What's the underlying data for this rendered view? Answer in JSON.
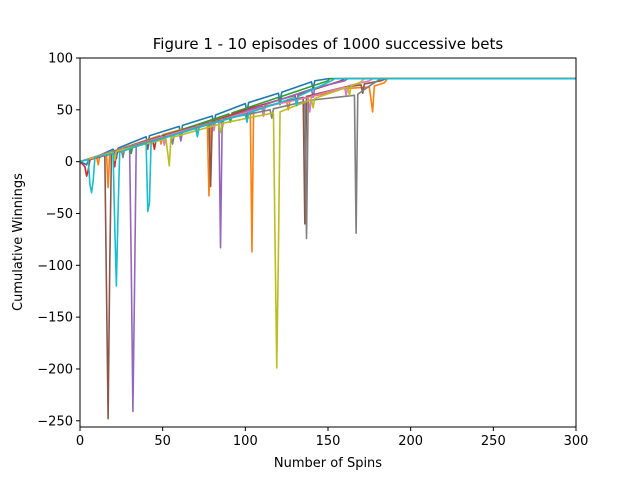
{
  "chart_data": {
    "type": "line",
    "title": "Figure 1 - 10 episodes of 1000 successive bets",
    "xlabel": "Number of Spins",
    "ylabel": "Cumulative Winnings",
    "xlim": [
      0,
      300
    ],
    "ylim": [
      -256,
      100
    ],
    "x_ticks": [
      0,
      50,
      100,
      150,
      200,
      250,
      300
    ],
    "y_ticks": [
      -250,
      -200,
      -150,
      -100,
      -50,
      0,
      50,
      100
    ],
    "x_tick_labels": [
      "0",
      "50",
      "100",
      "150",
      "200",
      "250",
      "300"
    ],
    "y_tick_labels": [
      "−250",
      "−200",
      "−150",
      "−100",
      "−50",
      "0",
      "50",
      "100"
    ],
    "grid": false,
    "legend": "none",
    "plateau_value": 80,
    "series": [
      {
        "color": "#1f77b4",
        "points": [
          [
            0,
            0
          ],
          [
            4,
            -3
          ],
          [
            5,
            1
          ],
          [
            20,
            12
          ],
          [
            22,
            3
          ],
          [
            23,
            13
          ],
          [
            40,
            24
          ],
          [
            41,
            15
          ],
          [
            42,
            25
          ],
          [
            60,
            34
          ],
          [
            61,
            25
          ],
          [
            62,
            35
          ],
          [
            80,
            44
          ],
          [
            81,
            35
          ],
          [
            82,
            45
          ],
          [
            100,
            56
          ],
          [
            101,
            48
          ],
          [
            102,
            57
          ],
          [
            120,
            66
          ],
          [
            121,
            58
          ],
          [
            122,
            67
          ],
          [
            140,
            77
          ],
          [
            141,
            70
          ],
          [
            142,
            78
          ],
          [
            150,
            80
          ],
          [
            300,
            80
          ]
        ]
      },
      {
        "color": "#ff7f0e",
        "points": [
          [
            0,
            0
          ],
          [
            10,
            5
          ],
          [
            11,
            -3
          ],
          [
            12,
            6
          ],
          [
            16,
            8
          ],
          [
            17,
            -25
          ],
          [
            18,
            9
          ],
          [
            48,
            25
          ],
          [
            49,
            17
          ],
          [
            50,
            26
          ],
          [
            77,
            38
          ],
          [
            78,
            -33
          ],
          [
            79,
            39
          ],
          [
            103,
            50
          ],
          [
            104,
            -87
          ],
          [
            105,
            51
          ],
          [
            125,
            58
          ],
          [
            126,
            50
          ],
          [
            127,
            59
          ],
          [
            150,
            66
          ],
          [
            155,
            70
          ],
          [
            175,
            72
          ],
          [
            177,
            48
          ],
          [
            178,
            73
          ],
          [
            184,
            76
          ],
          [
            186,
            80
          ],
          [
            300,
            80
          ]
        ]
      },
      {
        "color": "#2ca02c",
        "points": [
          [
            0,
            0
          ],
          [
            30,
            15
          ],
          [
            31,
            8
          ],
          [
            32,
            16
          ],
          [
            60,
            30
          ],
          [
            61,
            22
          ],
          [
            62,
            31
          ],
          [
            90,
            46
          ],
          [
            91,
            38
          ],
          [
            92,
            47
          ],
          [
            120,
            62
          ],
          [
            121,
            55
          ],
          [
            122,
            63
          ],
          [
            150,
            78
          ],
          [
            151,
            80
          ],
          [
            300,
            80
          ]
        ]
      },
      {
        "color": "#d62728",
        "points": [
          [
            0,
            0
          ],
          [
            3,
            -5
          ],
          [
            4,
            -14
          ],
          [
            5,
            -8
          ],
          [
            6,
            2
          ],
          [
            20,
            8
          ],
          [
            21,
            -5
          ],
          [
            22,
            9
          ],
          [
            44,
            20
          ],
          [
            45,
            12
          ],
          [
            46,
            21
          ],
          [
            70,
            33
          ],
          [
            71,
            25
          ],
          [
            72,
            34
          ],
          [
            100,
            50
          ],
          [
            101,
            42
          ],
          [
            102,
            51
          ],
          [
            130,
            64
          ],
          [
            131,
            57
          ],
          [
            132,
            65
          ],
          [
            158,
            78
          ],
          [
            160,
            80
          ],
          [
            300,
            80
          ]
        ]
      },
      {
        "color": "#9467bd",
        "points": [
          [
            0,
            0
          ],
          [
            15,
            7
          ],
          [
            30,
            14
          ],
          [
            31,
            -100
          ],
          [
            32,
            -241
          ],
          [
            33,
            -120
          ],
          [
            34,
            15
          ],
          [
            60,
            28
          ],
          [
            61,
            20
          ],
          [
            62,
            29
          ],
          [
            84,
            40
          ],
          [
            85,
            -83
          ],
          [
            86,
            41
          ],
          [
            110,
            54
          ],
          [
            111,
            45
          ],
          [
            112,
            55
          ],
          [
            140,
            70
          ],
          [
            141,
            62
          ],
          [
            142,
            71
          ],
          [
            160,
            78
          ],
          [
            162,
            80
          ],
          [
            300,
            80
          ]
        ]
      },
      {
        "color": "#8c564b",
        "points": [
          [
            0,
            0
          ],
          [
            10,
            5
          ],
          [
            15,
            8
          ],
          [
            16,
            -120
          ],
          [
            17,
            -248
          ],
          [
            18,
            -100
          ],
          [
            19,
            9
          ],
          [
            40,
            20
          ],
          [
            41,
            12
          ],
          [
            42,
            21
          ],
          [
            70,
            34
          ],
          [
            71,
            26
          ],
          [
            72,
            35
          ],
          [
            78,
            38
          ],
          [
            79,
            -24
          ],
          [
            80,
            39
          ],
          [
            110,
            52
          ],
          [
            111,
            44
          ],
          [
            112,
            53
          ],
          [
            135,
            62
          ],
          [
            136,
            -60
          ],
          [
            137,
            63
          ],
          [
            160,
            72
          ],
          [
            170,
            74
          ],
          [
            171,
            66
          ],
          [
            172,
            75
          ],
          [
            182,
            78
          ],
          [
            185,
            80
          ],
          [
            300,
            80
          ]
        ]
      },
      {
        "color": "#e377c2",
        "points": [
          [
            0,
            0
          ],
          [
            20,
            10
          ],
          [
            21,
            2
          ],
          [
            22,
            11
          ],
          [
            50,
            24
          ],
          [
            51,
            16
          ],
          [
            52,
            25
          ],
          [
            80,
            38
          ],
          [
            81,
            30
          ],
          [
            82,
            39
          ],
          [
            110,
            52
          ],
          [
            111,
            44
          ],
          [
            112,
            53
          ],
          [
            138,
            62
          ],
          [
            139,
            48
          ],
          [
            140,
            63
          ],
          [
            160,
            72
          ],
          [
            161,
            64
          ],
          [
            162,
            73
          ],
          [
            175,
            78
          ],
          [
            177,
            80
          ],
          [
            300,
            80
          ]
        ]
      },
      {
        "color": "#7f7f7f",
        "points": [
          [
            0,
            0
          ],
          [
            25,
            12
          ],
          [
            26,
            4
          ],
          [
            27,
            13
          ],
          [
            55,
            25
          ],
          [
            56,
            17
          ],
          [
            57,
            26
          ],
          [
            85,
            40
          ],
          [
            86,
            32
          ],
          [
            87,
            41
          ],
          [
            115,
            50
          ],
          [
            116,
            42
          ],
          [
            117,
            51
          ],
          [
            136,
            58
          ],
          [
            137,
            -74
          ],
          [
            138,
            59
          ],
          [
            166,
            64
          ],
          [
            167,
            -69
          ],
          [
            168,
            65
          ],
          [
            176,
            74
          ],
          [
            180,
            78
          ],
          [
            182,
            80
          ],
          [
            300,
            80
          ]
        ]
      },
      {
        "color": "#bcbd22",
        "points": [
          [
            0,
            0
          ],
          [
            20,
            9
          ],
          [
            21,
            1
          ],
          [
            22,
            10
          ],
          [
            52,
            22
          ],
          [
            54,
            -4
          ],
          [
            55,
            23
          ],
          [
            84,
            36
          ],
          [
            85,
            28
          ],
          [
            86,
            37
          ],
          [
            117,
            47
          ],
          [
            118,
            -80
          ],
          [
            119,
            -199
          ],
          [
            120,
            -90
          ],
          [
            121,
            48
          ],
          [
            140,
            60
          ],
          [
            141,
            52
          ],
          [
            142,
            61
          ],
          [
            162,
            72
          ],
          [
            163,
            64
          ],
          [
            164,
            73
          ],
          [
            170,
            77
          ],
          [
            172,
            80
          ],
          [
            300,
            80
          ]
        ]
      },
      {
        "color": "#17becf",
        "points": [
          [
            0,
            0
          ],
          [
            5,
            2
          ],
          [
            6,
            -22
          ],
          [
            7,
            -30
          ],
          [
            8,
            -18
          ],
          [
            9,
            4
          ],
          [
            20,
            8
          ],
          [
            21,
            -60
          ],
          [
            22,
            -120
          ],
          [
            23,
            -50
          ],
          [
            24,
            9
          ],
          [
            40,
            18
          ],
          [
            41,
            -48
          ],
          [
            42,
            -40
          ],
          [
            43,
            19
          ],
          [
            70,
            32
          ],
          [
            71,
            24
          ],
          [
            72,
            33
          ],
          [
            100,
            46
          ],
          [
            101,
            38
          ],
          [
            102,
            47
          ],
          [
            130,
            62
          ],
          [
            131,
            54
          ],
          [
            132,
            63
          ],
          [
            152,
            78
          ],
          [
            154,
            80
          ],
          [
            300,
            80
          ]
        ]
      }
    ]
  }
}
